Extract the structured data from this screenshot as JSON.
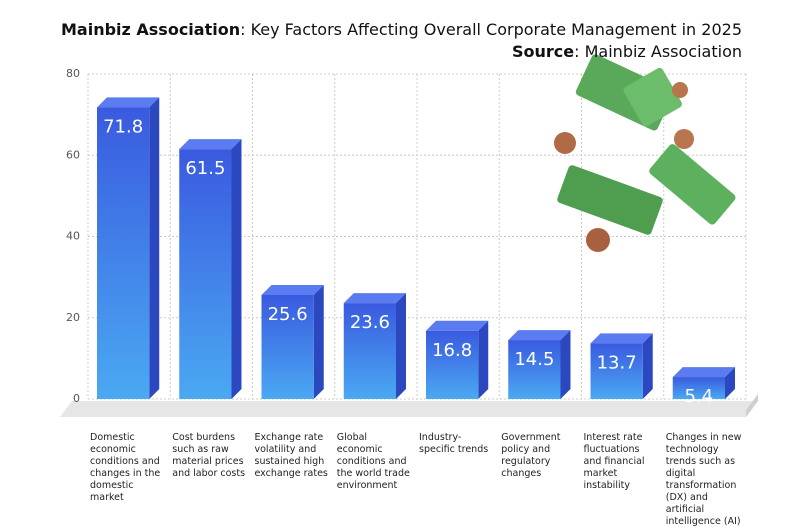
{
  "chart_data": {
    "type": "bar",
    "title": {
      "bold": "Mainbiz Association",
      "text": ": Key Factors Affecting Overall Corporate Management in 2025"
    },
    "subtitle": {
      "bold": "Source",
      "text": ": Mainbiz Association"
    },
    "categories": [
      "Domestic economic conditions and changes in the domestic market",
      "Cost burdens such as raw material prices and labor costs",
      "Exchange rate volatility and sustained high exchange rates",
      "Global economic conditions and the world trade environment",
      "Industry-specific trends",
      "Government policy and regulatory changes",
      "Interest rate fluctuations and financial market instability",
      "Changes in new technology trends such as digital transformation (DX) and artificial intelligence (AI)"
    ],
    "values": [
      71.8,
      61.5,
      25.6,
      23.6,
      16.8,
      14.5,
      13.7,
      5.4
    ],
    "colors": [
      "#3a5ae0",
      "#4aa9f2"
    ],
    "ylim": [
      0,
      80
    ],
    "yticks": [
      0,
      20,
      40,
      60,
      80
    ],
    "grid": true
  }
}
